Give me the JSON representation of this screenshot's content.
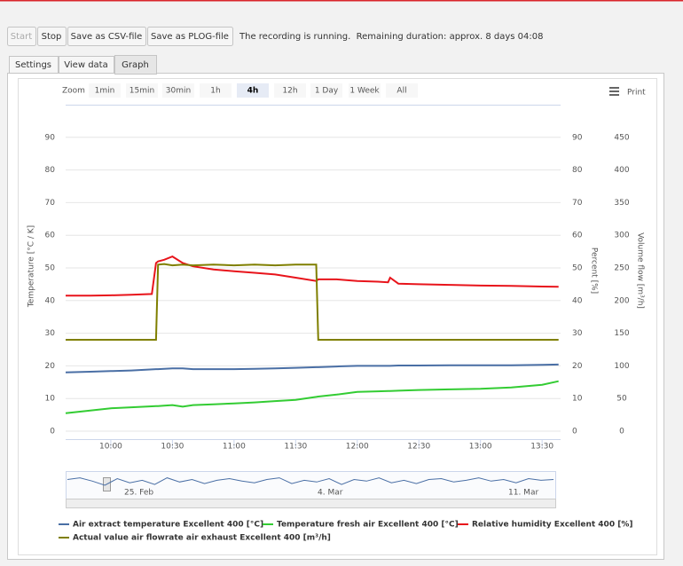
{
  "toolbar": {
    "buttons": [
      "Start",
      "Stop",
      "Save as CSV-file",
      "Save as PLOG-file"
    ],
    "status": "The recording is running.  Remaining duration: approx. 8 days 04:08"
  },
  "tabs": [
    "Settings",
    "View data",
    "Graph"
  ],
  "active_tab": "Graph",
  "zoom": {
    "label": "Zoom",
    "buttons": [
      "1min",
      "15min",
      "30min",
      "1h",
      "4h",
      "12h",
      "1 Day",
      "1 Week",
      "All"
    ],
    "selected": "4h"
  },
  "print": "Print",
  "chart_data": {
    "type": "line",
    "x": [
      "09:38",
      "09:50",
      "10:00",
      "10:10",
      "10:20",
      "10:22",
      "10:23",
      "10:26",
      "10:30",
      "10:35",
      "10:40",
      "10:50",
      "11:00",
      "11:10",
      "11:20",
      "11:30",
      "11:40",
      "11:41",
      "11:50",
      "12:00",
      "12:10",
      "12:15",
      "12:16",
      "12:20",
      "12:30",
      "12:45",
      "13:00",
      "13:15",
      "13:30",
      "13:38"
    ],
    "xlim": [
      "09:38",
      "13:39"
    ],
    "xticks": [
      "10:00",
      "10:30",
      "11:00",
      "11:30",
      "12:00",
      "12:30",
      "13:00",
      "13:30"
    ],
    "ylabel": "Temperature [°C / K]",
    "ylim": [
      0,
      100
    ],
    "yticks": [
      0,
      10,
      20,
      30,
      40,
      50,
      60,
      70,
      80,
      90
    ],
    "y2label": "Percent [%]",
    "y2lim": [
      0,
      100
    ],
    "y2ticks": [
      0,
      10,
      20,
      30,
      40,
      50,
      60,
      70,
      80,
      90
    ],
    "y3label": "Volume flow [m³/h]",
    "y3lim": [
      0,
      500
    ],
    "y3ticks": [
      0,
      50,
      100,
      150,
      200,
      250,
      300,
      350,
      400,
      450
    ],
    "grid": true,
    "series": [
      {
        "name": "Air extract temperature Excellent 400 [°C]",
        "color": "#4a6fa5",
        "axis": "y",
        "values": [
          18,
          18.2,
          18.4,
          18.6,
          18.9,
          19,
          19,
          19.1,
          19.2,
          19.2,
          19,
          19,
          19,
          19.1,
          19.2,
          19.4,
          19.6,
          19.6,
          19.8,
          20,
          20,
          20,
          20,
          20.1,
          20.1,
          20.2,
          20.2,
          20.2,
          20.3,
          20.4
        ]
      },
      {
        "name": "Temperature fresh air Excellent 400 [°C]",
        "color": "#33cc33",
        "axis": "y",
        "values": [
          5.5,
          6.3,
          7,
          7.3,
          7.6,
          7.7,
          7.7,
          7.8,
          8,
          7.5,
          8,
          8.2,
          8.5,
          8.8,
          9.2,
          9.6,
          10.5,
          10.6,
          11.2,
          12,
          12.2,
          12.3,
          12.3,
          12.4,
          12.6,
          12.8,
          13,
          13.4,
          14.2,
          15.3
        ]
      },
      {
        "name": "Relative humidity Excellent 400 [%]",
        "color": "#e8141b",
        "axis": "y2",
        "values": [
          41.5,
          41.5,
          41.6,
          41.8,
          42,
          51.5,
          52,
          52.5,
          53.5,
          51.5,
          50.5,
          49.5,
          49,
          48.5,
          48,
          47,
          46,
          46.5,
          46.5,
          46,
          45.8,
          45.6,
          47,
          45.2,
          45,
          44.8,
          44.6,
          44.5,
          44.3,
          44.2
        ]
      },
      {
        "name": "Actual value air flowrate air exhaust Excellent 400 [m³/h]",
        "color": "#7f7f00",
        "axis": "y3",
        "values": [
          140,
          140,
          140,
          140,
          140,
          140,
          255,
          256,
          254,
          255,
          254,
          255,
          254,
          255,
          254,
          255,
          255,
          140,
          140,
          140,
          140,
          140,
          140,
          140,
          140,
          140,
          140,
          140,
          140,
          140
        ]
      }
    ]
  },
  "navigator": {
    "labels": [
      "25. Feb",
      "4. Mar",
      "11. Mar"
    ],
    "ylim": [
      0,
      30
    ],
    "values": [
      22,
      24,
      20,
      15,
      23,
      18,
      21,
      16,
      24,
      19,
      22,
      17,
      21,
      23,
      20,
      18,
      22,
      24,
      17,
      21,
      19,
      23,
      16,
      22,
      20,
      24,
      18,
      21,
      17,
      22,
      23,
      19,
      21,
      24,
      20,
      22,
      18,
      23,
      21,
      22
    ]
  }
}
